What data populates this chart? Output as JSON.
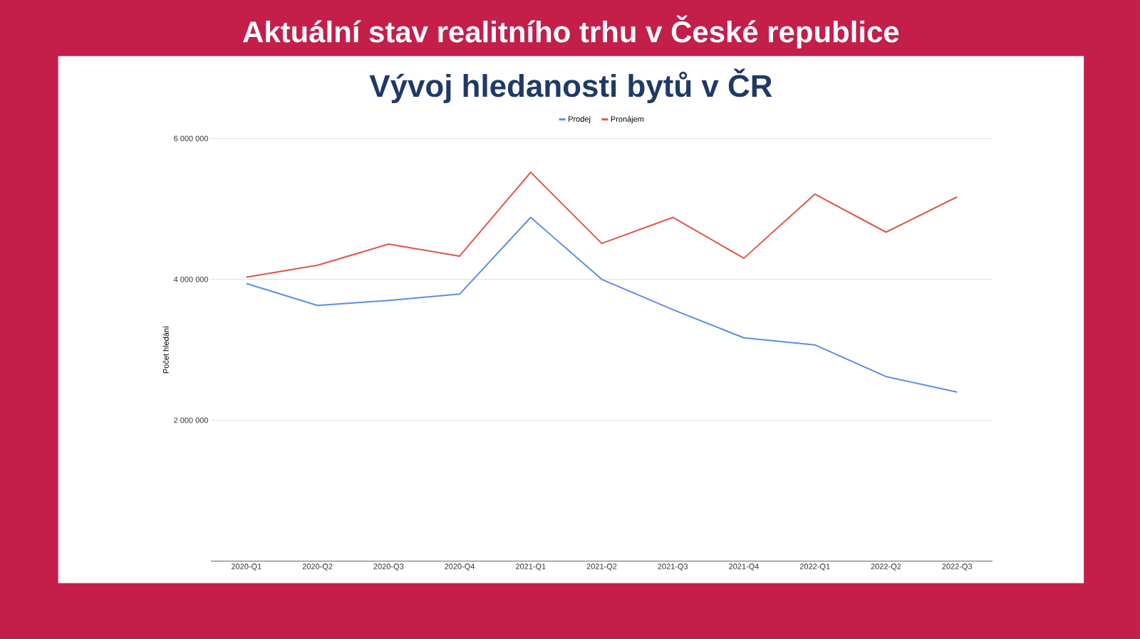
{
  "chart_data": {
    "type": "line",
    "title": "Aktuální stav realitního trhu v České republice",
    "subtitle": "Vývoj hledanosti bytů v ČR",
    "ylabel": "Počet hledání",
    "categories": [
      "2020-Q1",
      "2020-Q2",
      "2020-Q3",
      "2020-Q4",
      "2021-Q1",
      "2021-Q2",
      "2021-Q3",
      "2021-Q4",
      "2022-Q1",
      "2022-Q2",
      "2022-Q3"
    ],
    "series": [
      {
        "name": "Prodej",
        "color": "#5b8ee6",
        "values": [
          3940000,
          3630000,
          3700000,
          3790000,
          4880000,
          4000000,
          3570000,
          3170000,
          3070000,
          2620000,
          2400000
        ]
      },
      {
        "name": "Pronájem",
        "color": "#e0564b",
        "values": [
          4030000,
          4200000,
          4500000,
          4330000,
          5520000,
          4510000,
          4880000,
          4300000,
          5210000,
          4670000,
          5170000
        ]
      }
    ],
    "ylim": [
      0,
      6000000
    ],
    "yticks": [
      {
        "value": 2000000,
        "label": "2 000 000"
      },
      {
        "value": 4000000,
        "label": "4 000 000"
      },
      {
        "value": 6000000,
        "label": "6 000 000"
      }
    ],
    "grid": "y",
    "legend": "top",
    "marker": "none",
    "line_style": "solid"
  }
}
